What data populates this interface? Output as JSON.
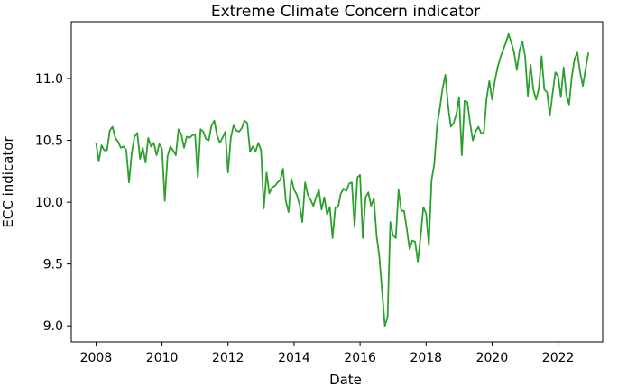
{
  "chart_data": {
    "type": "line",
    "title": "Extreme Climate Concern indicator",
    "xlabel": "Date",
    "ylabel": "ECC indicator",
    "xlim": [
      2007.25,
      2023.35
    ],
    "ylim": [
      8.87,
      11.46
    ],
    "x_ticks": [
      2008,
      2010,
      2012,
      2014,
      2016,
      2018,
      2020,
      2022
    ],
    "y_ticks": [
      9.0,
      9.5,
      10.0,
      10.5,
      11.0
    ],
    "y_tick_labels": [
      "9.0",
      "9.5",
      "10.0",
      "10.5",
      "11.0"
    ],
    "grid": false,
    "line_color": "#2ca02c",
    "series": [
      {
        "x_start": 2008.0,
        "x_step": 0.0833333,
        "values": [
          10.48,
          10.33,
          10.46,
          10.42,
          10.42,
          10.58,
          10.61,
          10.52,
          10.49,
          10.44,
          10.45,
          10.42,
          10.16,
          10.4,
          10.53,
          10.56,
          10.35,
          10.44,
          10.32,
          10.52,
          10.45,
          10.48,
          10.38,
          10.47,
          10.43,
          10.01,
          10.37,
          10.45,
          10.42,
          10.38,
          10.59,
          10.55,
          10.44,
          10.53,
          10.52,
          10.54,
          10.55,
          10.2,
          10.59,
          10.57,
          10.51,
          10.5,
          10.62,
          10.66,
          10.54,
          10.48,
          10.52,
          10.57,
          10.24,
          10.52,
          10.62,
          10.58,
          10.57,
          10.6,
          10.66,
          10.64,
          10.41,
          10.45,
          10.41,
          10.48,
          10.42,
          9.95,
          10.24,
          10.07,
          10.12,
          10.13,
          10.16,
          10.18,
          10.27,
          10.01,
          9.92,
          10.19,
          10.1,
          10.06,
          9.98,
          9.84,
          10.16,
          10.06,
          10.02,
          9.97,
          10.04,
          10.1,
          9.94,
          10.04,
          9.9,
          9.96,
          9.71,
          9.96,
          9.96,
          10.07,
          10.11,
          10.09,
          10.15,
          10.16,
          9.8,
          10.2,
          10.22,
          9.71,
          10.04,
          10.08,
          9.97,
          10.03,
          9.73,
          9.56,
          9.28,
          9.0,
          9.07,
          9.84,
          9.73,
          9.71,
          10.1,
          9.93,
          9.93,
          9.78,
          9.62,
          9.69,
          9.68,
          9.52,
          9.72,
          9.96,
          9.91,
          9.65,
          10.18,
          10.31,
          10.62,
          10.76,
          10.92,
          11.03,
          10.78,
          10.61,
          10.64,
          10.71,
          10.85,
          10.38,
          10.82,
          10.81,
          10.64,
          10.5,
          10.57,
          10.61,
          10.56,
          10.56,
          10.84,
          10.98,
          10.83,
          10.98,
          11.09,
          11.17,
          11.23,
          11.29,
          11.36,
          11.29,
          11.21,
          11.07,
          11.23,
          11.3,
          11.18,
          10.86,
          11.11,
          10.91,
          10.83,
          10.92,
          11.18,
          10.91,
          10.89,
          10.7,
          10.88,
          11.05,
          11.02,
          10.85,
          11.09,
          10.87,
          10.79,
          11.02,
          11.16,
          11.21,
          11.05,
          10.94,
          11.08,
          11.21
        ]
      }
    ]
  }
}
